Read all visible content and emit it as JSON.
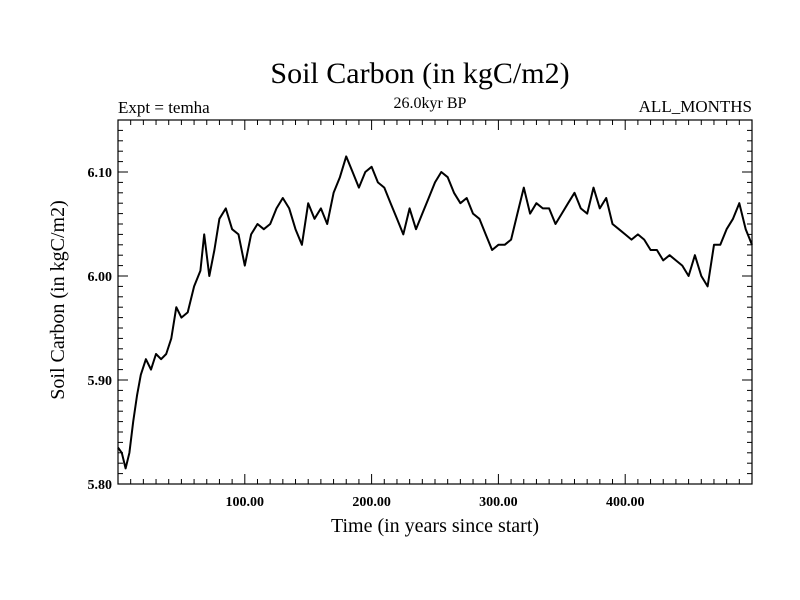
{
  "chart_data": {
    "type": "line",
    "title": "Soil Carbon (in kgC/m2)",
    "subtitle_left": "Expt = temha",
    "subtitle_center": "26.0kyr BP",
    "subtitle_right": "ALL_MONTHS",
    "xlabel": "Time (in years since start)",
    "ylabel": "Soil Carbon (in kgC/m2)",
    "xlim": [
      0,
      500
    ],
    "ylim": [
      5.8,
      6.15
    ],
    "x_ticks": [
      100,
      200,
      300,
      400
    ],
    "x_tick_labels": [
      "100.00",
      "200.00",
      "300.00",
      "400.00"
    ],
    "y_ticks": [
      5.8,
      5.9,
      6.0,
      6.1
    ],
    "y_tick_labels": [
      "5.80",
      "5.90",
      "6.00",
      "6.10"
    ],
    "grid": false,
    "series": [
      {
        "name": "Soil Carbon",
        "color": "#000000",
        "x": [
          0,
          3,
          6,
          9,
          12,
          15,
          18,
          22,
          26,
          30,
          34,
          38,
          42,
          46,
          50,
          55,
          60,
          65,
          68,
          72,
          76,
          80,
          85,
          90,
          95,
          100,
          105,
          110,
          115,
          120,
          125,
          130,
          135,
          140,
          145,
          150,
          155,
          160,
          165,
          170,
          175,
          180,
          185,
          190,
          195,
          200,
          205,
          210,
          215,
          220,
          225,
          230,
          235,
          240,
          245,
          250,
          255,
          260,
          265,
          270,
          275,
          280,
          285,
          290,
          295,
          300,
          305,
          310,
          315,
          320,
          325,
          330,
          335,
          340,
          345,
          350,
          355,
          360,
          365,
          370,
          375,
          380,
          385,
          390,
          395,
          400,
          405,
          410,
          415,
          420,
          425,
          430,
          435,
          440,
          445,
          450,
          455,
          460,
          465,
          470,
          475,
          480,
          485,
          490,
          495,
          500
        ],
        "values": [
          5.835,
          5.83,
          5.815,
          5.83,
          5.86,
          5.885,
          5.905,
          5.92,
          5.91,
          5.925,
          5.92,
          5.925,
          5.94,
          5.97,
          5.96,
          5.965,
          5.99,
          6.005,
          6.04,
          6.0,
          6.025,
          6.055,
          6.065,
          6.045,
          6.04,
          6.01,
          6.04,
          6.05,
          6.045,
          6.05,
          6.065,
          6.075,
          6.065,
          6.045,
          6.03,
          6.07,
          6.055,
          6.065,
          6.05,
          6.08,
          6.095,
          6.115,
          6.1,
          6.085,
          6.1,
          6.105,
          6.09,
          6.085,
          6.07,
          6.055,
          6.04,
          6.065,
          6.045,
          6.06,
          6.075,
          6.09,
          6.1,
          6.095,
          6.08,
          6.07,
          6.075,
          6.06,
          6.055,
          6.04,
          6.025,
          6.03,
          6.03,
          6.035,
          6.06,
          6.085,
          6.06,
          6.07,
          6.065,
          6.065,
          6.05,
          6.06,
          6.07,
          6.08,
          6.065,
          6.06,
          6.085,
          6.065,
          6.075,
          6.05,
          6.045,
          6.04,
          6.035,
          6.04,
          6.035,
          6.025,
          6.025,
          6.015,
          6.02,
          6.015,
          6.01,
          6.0,
          6.02,
          6.0,
          5.99,
          6.03,
          6.03,
          6.045,
          6.055,
          6.07,
          6.045,
          6.03
        ]
      }
    ]
  }
}
